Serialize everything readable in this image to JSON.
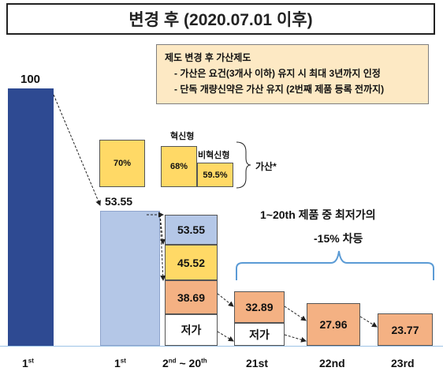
{
  "title": "변경 후 (2020.07.01 이후)",
  "note": {
    "heading": "제도 변경 후 가산제도",
    "line1": "- 가산은 요건(3개사 이하) 유지 시 최대 3년까지 인정",
    "line2": "- 단독 개량신약은 가산 유지 (2번째 제품 등록 전까지)"
  },
  "premium": {
    "innovative_label": "혁신형",
    "non_innovative_label": "비혁신형",
    "box_70": "70%",
    "box_68": "68%",
    "box_595": "59.5%",
    "bracket_label": "가산*"
  },
  "group_note": {
    "line1": "1~20th 제품 중 최저가의",
    "line2": "-15% 차등"
  },
  "colors": {
    "dark_blue": "#2e4a92",
    "light_blue": "#b4c7e7",
    "yellow": "#ffd966",
    "orange": "#f4b183",
    "note_bg": "#fde9c4",
    "bracket": "#5b9bd5"
  },
  "chart_data": {
    "type": "bar",
    "categories": [
      {
        "base": "1",
        "sup": "st"
      },
      {
        "base": "1",
        "sup": "st"
      },
      {
        "base": "2",
        "sup": "nd",
        "sep": " ~ ",
        "base2": "20",
        "sup2": "th"
      },
      {
        "base": "21st"
      },
      {
        "base": "22nd"
      },
      {
        "base": "23rd"
      }
    ],
    "bars": [
      {
        "value": 100,
        "label": "100"
      },
      {
        "value": 53.55,
        "label": "53.55"
      },
      {
        "stack": [
          {
            "label": "53.55",
            "color": "light_blue"
          },
          {
            "label": "45.52",
            "color": "yellow"
          },
          {
            "label": "38.69",
            "color": "orange"
          },
          {
            "label": "저가",
            "color": "white"
          }
        ]
      },
      {
        "stack": [
          {
            "label": "32.89",
            "color": "orange"
          },
          {
            "label": "저가",
            "color": "white"
          }
        ]
      },
      {
        "value": 27.96,
        "label": "27.96"
      },
      {
        "value": 23.77,
        "label": "23.77"
      }
    ]
  }
}
